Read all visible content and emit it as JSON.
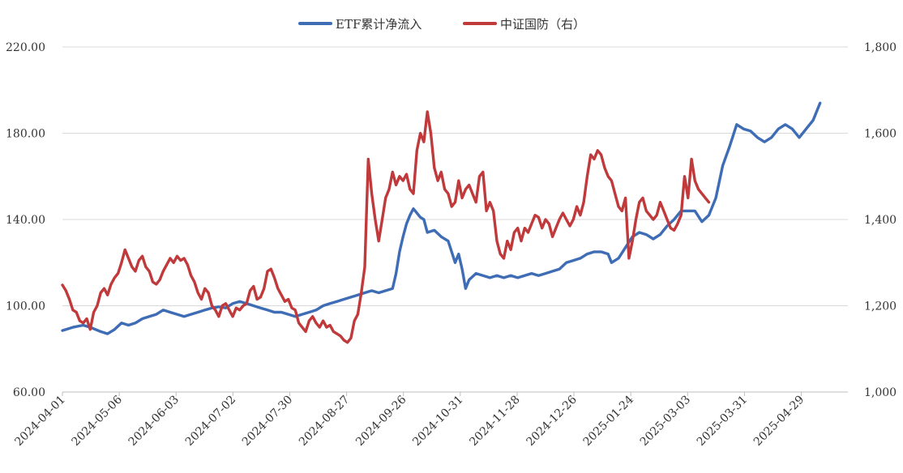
{
  "chart_data": {
    "type": "line",
    "title": "",
    "xlabel": "",
    "ylabel_left": "",
    "ylabel_right": "",
    "ylim_left": [
      60,
      220
    ],
    "ylim_right": [
      1000,
      1800
    ],
    "yticks_left": [
      "60.00",
      "100.00",
      "140.00",
      "180.00",
      "220.00"
    ],
    "yticks_right": [
      "1,000",
      "1,200",
      "1,400",
      "1,600",
      "1,800"
    ],
    "x_tick_labels": [
      "2024-04-01",
      "2024-05-06",
      "2024-06-03",
      "2024-07-02",
      "2024-07-30",
      "2024-08-27",
      "2024-09-26",
      "2024-10-31",
      "2024-11-28",
      "2024-12-26",
      "2025-01-24",
      "2025-03-03",
      "2025-03-31",
      "2025-04-29"
    ],
    "grid": "horizontal",
    "legend_position": "top-center",
    "series": [
      {
        "name": "ETF累计净流入",
        "axis": "left",
        "color": "#3E6DB5",
        "points": [
          [
            0,
            88.5
          ],
          [
            3,
            90
          ],
          [
            6,
            91
          ],
          [
            8,
            90
          ],
          [
            11,
            88
          ],
          [
            13,
            87
          ],
          [
            15,
            89
          ],
          [
            17,
            92
          ],
          [
            19,
            91
          ],
          [
            21,
            92
          ],
          [
            23,
            94
          ],
          [
            25,
            95
          ],
          [
            27,
            96
          ],
          [
            29,
            98
          ],
          [
            31,
            97
          ],
          [
            33,
            96
          ],
          [
            35,
            95
          ],
          [
            37,
            96
          ],
          [
            39,
            97
          ],
          [
            41,
            98
          ],
          [
            43,
            99
          ],
          [
            45,
            99.5
          ],
          [
            47,
            99
          ],
          [
            49,
            101
          ],
          [
            51,
            102
          ],
          [
            53,
            101
          ],
          [
            55,
            100
          ],
          [
            57,
            99
          ],
          [
            59,
            98
          ],
          [
            61,
            97
          ],
          [
            63,
            97
          ],
          [
            65,
            96
          ],
          [
            67,
            95
          ],
          [
            69,
            96
          ],
          [
            71,
            97
          ],
          [
            73,
            98
          ],
          [
            75,
            100
          ],
          [
            77,
            101
          ],
          [
            79,
            102
          ],
          [
            81,
            103
          ],
          [
            83,
            104
          ],
          [
            85,
            105
          ],
          [
            87,
            106
          ],
          [
            89,
            107
          ],
          [
            91,
            106
          ],
          [
            93,
            107
          ],
          [
            95,
            108
          ],
          [
            96,
            115
          ],
          [
            97,
            125
          ],
          [
            98,
            132
          ],
          [
            99,
            138
          ],
          [
            100,
            142
          ],
          [
            101,
            145
          ],
          [
            103,
            141
          ],
          [
            104,
            140
          ],
          [
            105,
            134
          ],
          [
            107,
            135
          ],
          [
            109,
            132
          ],
          [
            111,
            130
          ],
          [
            112,
            125
          ],
          [
            113,
            120
          ],
          [
            114,
            124
          ],
          [
            115,
            117
          ],
          [
            116,
            108
          ],
          [
            117,
            112
          ],
          [
            119,
            115
          ],
          [
            121,
            114
          ],
          [
            123,
            113
          ],
          [
            125,
            114
          ],
          [
            127,
            113
          ],
          [
            129,
            114
          ],
          [
            131,
            113
          ],
          [
            133,
            114
          ],
          [
            135,
            115
          ],
          [
            137,
            114
          ],
          [
            139,
            115
          ],
          [
            141,
            116
          ],
          [
            143,
            117
          ],
          [
            145,
            120
          ],
          [
            147,
            121
          ],
          [
            149,
            122
          ],
          [
            151,
            124
          ],
          [
            153,
            125
          ],
          [
            155,
            125
          ],
          [
            157,
            124
          ],
          [
            158,
            120
          ],
          [
            160,
            122
          ],
          [
            162,
            127
          ],
          [
            164,
            132
          ],
          [
            166,
            134
          ],
          [
            168,
            133
          ],
          [
            170,
            131
          ],
          [
            172,
            133
          ],
          [
            174,
            137
          ],
          [
            176,
            140
          ],
          [
            178,
            144
          ],
          [
            180,
            144
          ],
          [
            182,
            144
          ],
          [
            184,
            139
          ],
          [
            186,
            142
          ],
          [
            188,
            150
          ],
          [
            190,
            165
          ],
          [
            192,
            174
          ],
          [
            194,
            184
          ],
          [
            196,
            182
          ],
          [
            198,
            181
          ],
          [
            200,
            178
          ],
          [
            202,
            176
          ],
          [
            204,
            178
          ],
          [
            206,
            182
          ],
          [
            208,
            184
          ],
          [
            210,
            182
          ],
          [
            212,
            178
          ],
          [
            214,
            182
          ],
          [
            216,
            186
          ],
          [
            218,
            194
          ]
        ]
      },
      {
        "name": "中证国防（右）",
        "axis": "right",
        "color": "#C0393B",
        "points": [
          [
            0,
            1248
          ],
          [
            1,
            1235
          ],
          [
            2,
            1215
          ],
          [
            3,
            1190
          ],
          [
            4,
            1185
          ],
          [
            5,
            1165
          ],
          [
            6,
            1160
          ],
          [
            7,
            1170
          ],
          [
            8,
            1145
          ],
          [
            9,
            1185
          ],
          [
            10,
            1200
          ],
          [
            11,
            1230
          ],
          [
            12,
            1240
          ],
          [
            13,
            1225
          ],
          [
            14,
            1250
          ],
          [
            15,
            1265
          ],
          [
            16,
            1275
          ],
          [
            17,
            1300
          ],
          [
            18,
            1330
          ],
          [
            19,
            1310
          ],
          [
            20,
            1290
          ],
          [
            21,
            1280
          ],
          [
            22,
            1305
          ],
          [
            23,
            1315
          ],
          [
            24,
            1290
          ],
          [
            25,
            1280
          ],
          [
            26,
            1255
          ],
          [
            27,
            1250
          ],
          [
            28,
            1260
          ],
          [
            29,
            1280
          ],
          [
            30,
            1295
          ],
          [
            31,
            1310
          ],
          [
            32,
            1300
          ],
          [
            33,
            1315
          ],
          [
            34,
            1305
          ],
          [
            35,
            1310
          ],
          [
            36,
            1295
          ],
          [
            37,
            1270
          ],
          [
            38,
            1255
          ],
          [
            39,
            1230
          ],
          [
            40,
            1215
          ],
          [
            41,
            1240
          ],
          [
            42,
            1230
          ],
          [
            43,
            1200
          ],
          [
            44,
            1190
          ],
          [
            45,
            1175
          ],
          [
            46,
            1200
          ],
          [
            47,
            1205
          ],
          [
            48,
            1190
          ],
          [
            49,
            1175
          ],
          [
            50,
            1195
          ],
          [
            51,
            1190
          ],
          [
            52,
            1200
          ],
          [
            53,
            1205
          ],
          [
            54,
            1235
          ],
          [
            55,
            1245
          ],
          [
            56,
            1215
          ],
          [
            57,
            1220
          ],
          [
            58,
            1240
          ],
          [
            59,
            1280
          ],
          [
            60,
            1285
          ],
          [
            61,
            1265
          ],
          [
            62,
            1240
          ],
          [
            63,
            1225
          ],
          [
            64,
            1210
          ],
          [
            65,
            1215
          ],
          [
            66,
            1195
          ],
          [
            67,
            1190
          ],
          [
            68,
            1160
          ],
          [
            69,
            1150
          ],
          [
            70,
            1140
          ],
          [
            71,
            1165
          ],
          [
            72,
            1175
          ],
          [
            73,
            1160
          ],
          [
            74,
            1150
          ],
          [
            75,
            1165
          ],
          [
            76,
            1150
          ],
          [
            77,
            1155
          ],
          [
            78,
            1140
          ],
          [
            79,
            1135
          ],
          [
            80,
            1130
          ],
          [
            81,
            1120
          ],
          [
            82,
            1115
          ],
          [
            83,
            1125
          ],
          [
            84,
            1165
          ],
          [
            85,
            1180
          ],
          [
            86,
            1230
          ],
          [
            87,
            1290
          ],
          [
            88,
            1540
          ],
          [
            89,
            1460
          ],
          [
            90,
            1400
          ],
          [
            91,
            1350
          ],
          [
            92,
            1400
          ],
          [
            93,
            1450
          ],
          [
            94,
            1470
          ],
          [
            95,
            1510
          ],
          [
            96,
            1480
          ],
          [
            97,
            1500
          ],
          [
            98,
            1490
          ],
          [
            99,
            1505
          ],
          [
            100,
            1470
          ],
          [
            101,
            1460
          ],
          [
            102,
            1560
          ],
          [
            103,
            1600
          ],
          [
            104,
            1580
          ],
          [
            105,
            1650
          ],
          [
            106,
            1600
          ],
          [
            107,
            1520
          ],
          [
            108,
            1490
          ],
          [
            109,
            1510
          ],
          [
            110,
            1470
          ],
          [
            111,
            1460
          ],
          [
            112,
            1430
          ],
          [
            113,
            1440
          ],
          [
            114,
            1490
          ],
          [
            115,
            1450
          ],
          [
            116,
            1470
          ],
          [
            117,
            1480
          ],
          [
            118,
            1460
          ],
          [
            119,
            1440
          ],
          [
            120,
            1500
          ],
          [
            121,
            1510
          ],
          [
            122,
            1420
          ],
          [
            123,
            1440
          ],
          [
            124,
            1420
          ],
          [
            125,
            1350
          ],
          [
            126,
            1320
          ],
          [
            127,
            1310
          ],
          [
            128,
            1350
          ],
          [
            129,
            1330
          ],
          [
            130,
            1370
          ],
          [
            131,
            1380
          ],
          [
            132,
            1350
          ],
          [
            133,
            1380
          ],
          [
            134,
            1370
          ],
          [
            135,
            1390
          ],
          [
            136,
            1410
          ],
          [
            137,
            1405
          ],
          [
            138,
            1380
          ],
          [
            139,
            1400
          ],
          [
            140,
            1390
          ],
          [
            141,
            1360
          ],
          [
            142,
            1380
          ],
          [
            143,
            1400
          ],
          [
            144,
            1415
          ],
          [
            145,
            1400
          ],
          [
            146,
            1385
          ],
          [
            147,
            1400
          ],
          [
            148,
            1430
          ],
          [
            149,
            1410
          ],
          [
            150,
            1440
          ],
          [
            151,
            1500
          ],
          [
            152,
            1550
          ],
          [
            153,
            1540
          ],
          [
            154,
            1560
          ],
          [
            155,
            1550
          ],
          [
            156,
            1520
          ],
          [
            157,
            1500
          ],
          [
            158,
            1490
          ],
          [
            159,
            1460
          ],
          [
            160,
            1430
          ],
          [
            161,
            1420
          ],
          [
            162,
            1450
          ],
          [
            163,
            1310
          ],
          [
            164,
            1350
          ],
          [
            165,
            1400
          ],
          [
            166,
            1440
          ],
          [
            167,
            1450
          ],
          [
            168,
            1420
          ],
          [
            169,
            1410
          ],
          [
            170,
            1400
          ],
          [
            171,
            1410
          ],
          [
            172,
            1440
          ],
          [
            173,
            1420
          ],
          [
            174,
            1400
          ],
          [
            175,
            1380
          ],
          [
            176,
            1375
          ],
          [
            177,
            1390
          ],
          [
            178,
            1410
          ],
          [
            179,
            1500
          ],
          [
            180,
            1450
          ],
          [
            181,
            1540
          ],
          [
            182,
            1490
          ],
          [
            183,
            1470
          ],
          [
            184,
            1460
          ],
          [
            185,
            1450
          ],
          [
            186,
            1440
          ]
        ]
      }
    ]
  }
}
